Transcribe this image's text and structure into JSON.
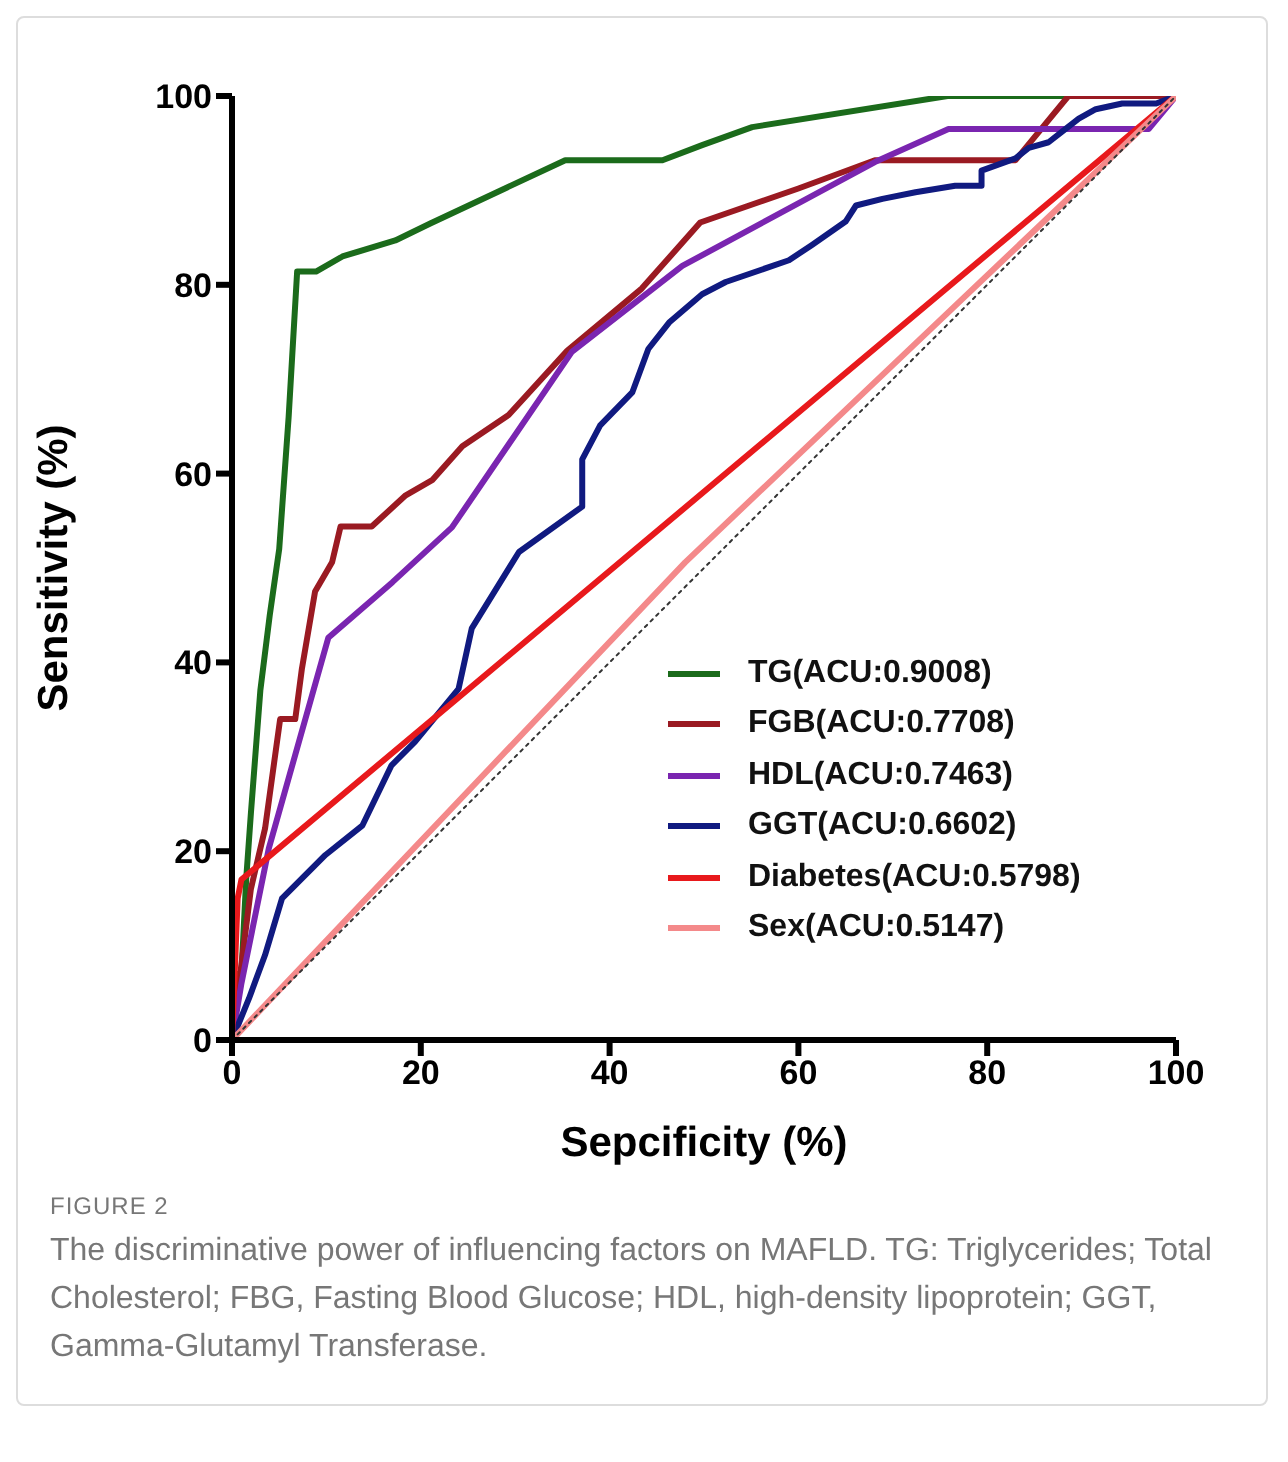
{
  "chart_data": {
    "type": "line",
    "xlabel": "Sepcificity (%)",
    "ylabel": "Sensitivity (%)",
    "xlim": [
      0,
      100
    ],
    "xticks": [
      0,
      20,
      40,
      60,
      80,
      100
    ],
    "ylim": [
      0,
      100
    ],
    "yticks": [
      0,
      20,
      40,
      60,
      80,
      100
    ],
    "grid": false,
    "legend": "bottom right",
    "marker": "none",
    "line_style": "solid",
    "series": [
      {
        "name": "TG(ACU:0.9008)",
        "color": "#1b6b1b",
        "x": [
          0,
          0.5,
          1,
          1.5,
          2,
          3,
          4,
          5,
          6,
          6.9,
          8.9,
          11.7,
          17.3,
          21,
          35.3,
          45.6,
          49.8,
          55.1,
          75.8,
          100
        ],
        "values": [
          0,
          7,
          7,
          17,
          24,
          37,
          45,
          52,
          66,
          81.4,
          81.4,
          83,
          84.7,
          86.5,
          93.2,
          93.2,
          94.8,
          96.7,
          100,
          100
        ]
      },
      {
        "name": "FGB(ACU:0.7708)",
        "color": "#9a1a22",
        "x": [
          0,
          1,
          2,
          3.5,
          5.1,
          6.7,
          7.4,
          8.8,
          10.6,
          11.5,
          14.8,
          18.4,
          21.2,
          24.4,
          29.3,
          35.5,
          43.4,
          49.6,
          60,
          68.1,
          83,
          88.6,
          100
        ],
        "values": [
          0,
          8,
          16,
          22.4,
          34,
          34,
          39.3,
          47.5,
          50.6,
          54.4,
          54.4,
          57.7,
          59.3,
          62.9,
          66.2,
          73,
          79.6,
          86.6,
          90.2,
          93.2,
          93.2,
          100,
          100
        ]
      },
      {
        "name": "HDL(ACU:0.7463)",
        "color": "#7a25b0",
        "x": [
          0,
          1,
          3.9,
          10.2,
          17,
          23.3,
          36,
          47.7,
          68.1,
          75.9,
          97.1,
          100
        ],
        "values": [
          0,
          6,
          20.3,
          42.6,
          48.5,
          54.3,
          72.9,
          82,
          93,
          96.5,
          96.5,
          100
        ]
      },
      {
        "name": "GGT(ACU:0.6602)",
        "color": "#101a80",
        "x": [
          0,
          1.8,
          3.5,
          5.3,
          9.9,
          13.8,
          16.9,
          19.4,
          24,
          25.4,
          30.4,
          37.1,
          37.1,
          39,
          42.4,
          44.1,
          46.3,
          49.8,
          52.3,
          59,
          61.4,
          65,
          66.1,
          68.9,
          72.4,
          76.6,
          79.4,
          79.4,
          83,
          84.4,
          86.5,
          87.9,
          89.7,
          91.5,
          94.3,
          97.9,
          100
        ],
        "values": [
          0,
          4.4,
          9,
          15,
          19.6,
          22.7,
          29.1,
          31.6,
          37.2,
          43.6,
          51.7,
          56.5,
          61.5,
          65.1,
          68.6,
          73.2,
          76,
          79,
          80.3,
          82.6,
          84.2,
          86.7,
          88.4,
          89.1,
          89.8,
          90.5,
          90.5,
          92.1,
          93.4,
          94.5,
          95.1,
          96.2,
          97.6,
          98.6,
          99.2,
          99.2,
          100
        ]
      },
      {
        "name": "Diabetes(ACU:0.5798)",
        "color": "#e8191c",
        "x": [
          0,
          0.6,
          1,
          100
        ],
        "values": [
          0,
          15,
          17,
          100
        ]
      },
      {
        "name": "Sex(ACU:0.5147)",
        "color": "#f4898a",
        "x": [
          0,
          48,
          100
        ],
        "values": [
          0,
          50.6,
          100
        ]
      },
      {
        "color": "#333333",
        "line_style": "dotted",
        "x": [
          0,
          100
        ],
        "values": [
          0,
          100
        ]
      }
    ],
    "annotations": [
      "FIGURE 2",
      "The discriminative power of influencing factors on MAFLD. TG: Triglycerides; Total Cholesterol; FBG, Fasting Blood Glucose; HDL, high-density lipoprotein; GGT, Gamma-Glutamyl Transferase."
    ]
  }
}
